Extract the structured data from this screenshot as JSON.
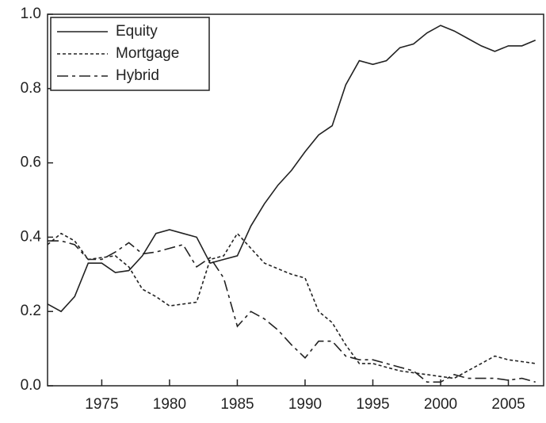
{
  "chart_data": {
    "type": "line",
    "x": [
      1971,
      1972,
      1973,
      1974,
      1975,
      1976,
      1977,
      1978,
      1979,
      1980,
      1981,
      1982,
      1983,
      1984,
      1985,
      1986,
      1987,
      1988,
      1989,
      1990,
      1991,
      1992,
      1993,
      1994,
      1995,
      1996,
      1997,
      1998,
      1999,
      2000,
      2001,
      2002,
      2003,
      2004,
      2005,
      2006,
      2007
    ],
    "series": [
      {
        "name": "Equity",
        "color": "#222222",
        "dash": "solid",
        "values": [
          0.22,
          0.2,
          0.24,
          0.33,
          0.33,
          0.305,
          0.31,
          0.35,
          0.41,
          0.42,
          0.41,
          0.4,
          0.33,
          0.34,
          0.35,
          0.43,
          0.49,
          0.54,
          0.58,
          0.63,
          0.675,
          0.7,
          0.81,
          0.875,
          0.865,
          0.875,
          0.91,
          0.92,
          0.95,
          0.97,
          0.955,
          0.935,
          0.915,
          0.9,
          0.915,
          0.915,
          0.93
        ]
      },
      {
        "name": "Mortgage",
        "color": "#222222",
        "dash": "dotted",
        "values": [
          0.38,
          0.41,
          0.39,
          0.34,
          0.345,
          0.35,
          0.32,
          0.26,
          0.24,
          0.215,
          0.22,
          0.225,
          0.34,
          0.35,
          0.41,
          0.37,
          0.33,
          0.315,
          0.3,
          0.29,
          0.2,
          0.17,
          0.11,
          0.06,
          0.06,
          0.05,
          0.04,
          0.035,
          0.03,
          0.025,
          0.02,
          0.04,
          0.06,
          0.08,
          0.07,
          0.065,
          0.06
        ]
      },
      {
        "name": "Hybrid",
        "color": "#222222",
        "dash": "dashed",
        "values": [
          0.39,
          0.39,
          0.38,
          0.34,
          0.34,
          0.36,
          0.385,
          0.355,
          0.36,
          0.37,
          0.38,
          0.32,
          0.345,
          0.29,
          0.16,
          0.2,
          0.18,
          0.15,
          0.11,
          0.075,
          0.12,
          0.12,
          0.08,
          0.07,
          0.07,
          0.06,
          0.05,
          0.04,
          0.01,
          0.01,
          0.03,
          0.02,
          0.02,
          0.02,
          0.015,
          0.02,
          0.01
        ]
      }
    ],
    "xlim": [
      1971,
      2007.6
    ],
    "xticks": [
      1975,
      1980,
      1985,
      1990,
      1995,
      2000,
      2005
    ],
    "ylim": [
      0,
      1
    ],
    "yticks": [
      {
        "value": 0,
        "label": "0.0"
      },
      0.2,
      0.4,
      0.6,
      0.8,
      {
        "value": 1,
        "label": "1.0"
      }
    ],
    "legend": "top-left"
  }
}
